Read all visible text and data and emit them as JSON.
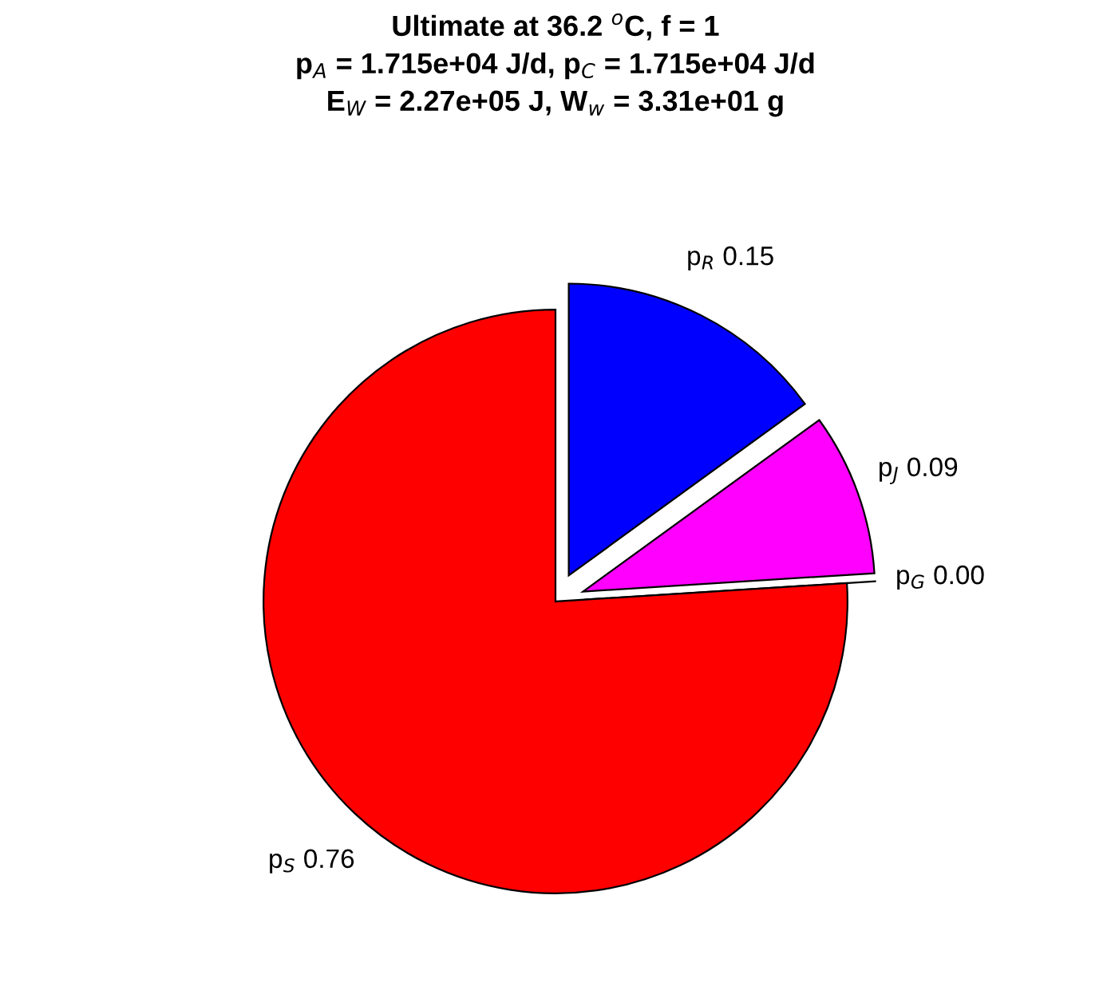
{
  "chart_data": {
    "type": "pie",
    "title": "Ultimate at 36.2 $^{o}$C, f = 1\np$_{A}$ = 1.715e+04 J/d, p$_{C}$ = 1.715e+04 J/d\nE$_{W}$ = 2.27e+05 J, W$_{w}$ = 3.31e+01 g",
    "categories": [
      "p$_{R}$",
      "p$_{J}$",
      "p$_{G}$",
      "p$_{S}$"
    ],
    "values": [
      0.15,
      0.09,
      0.0,
      0.76
    ],
    "value_labels": [
      "0.15",
      "0.09",
      "0.00",
      "0.76"
    ],
    "colors": [
      "#0000ff",
      "#ff00ff",
      "#000000",
      "#ff0000"
    ]
  }
}
